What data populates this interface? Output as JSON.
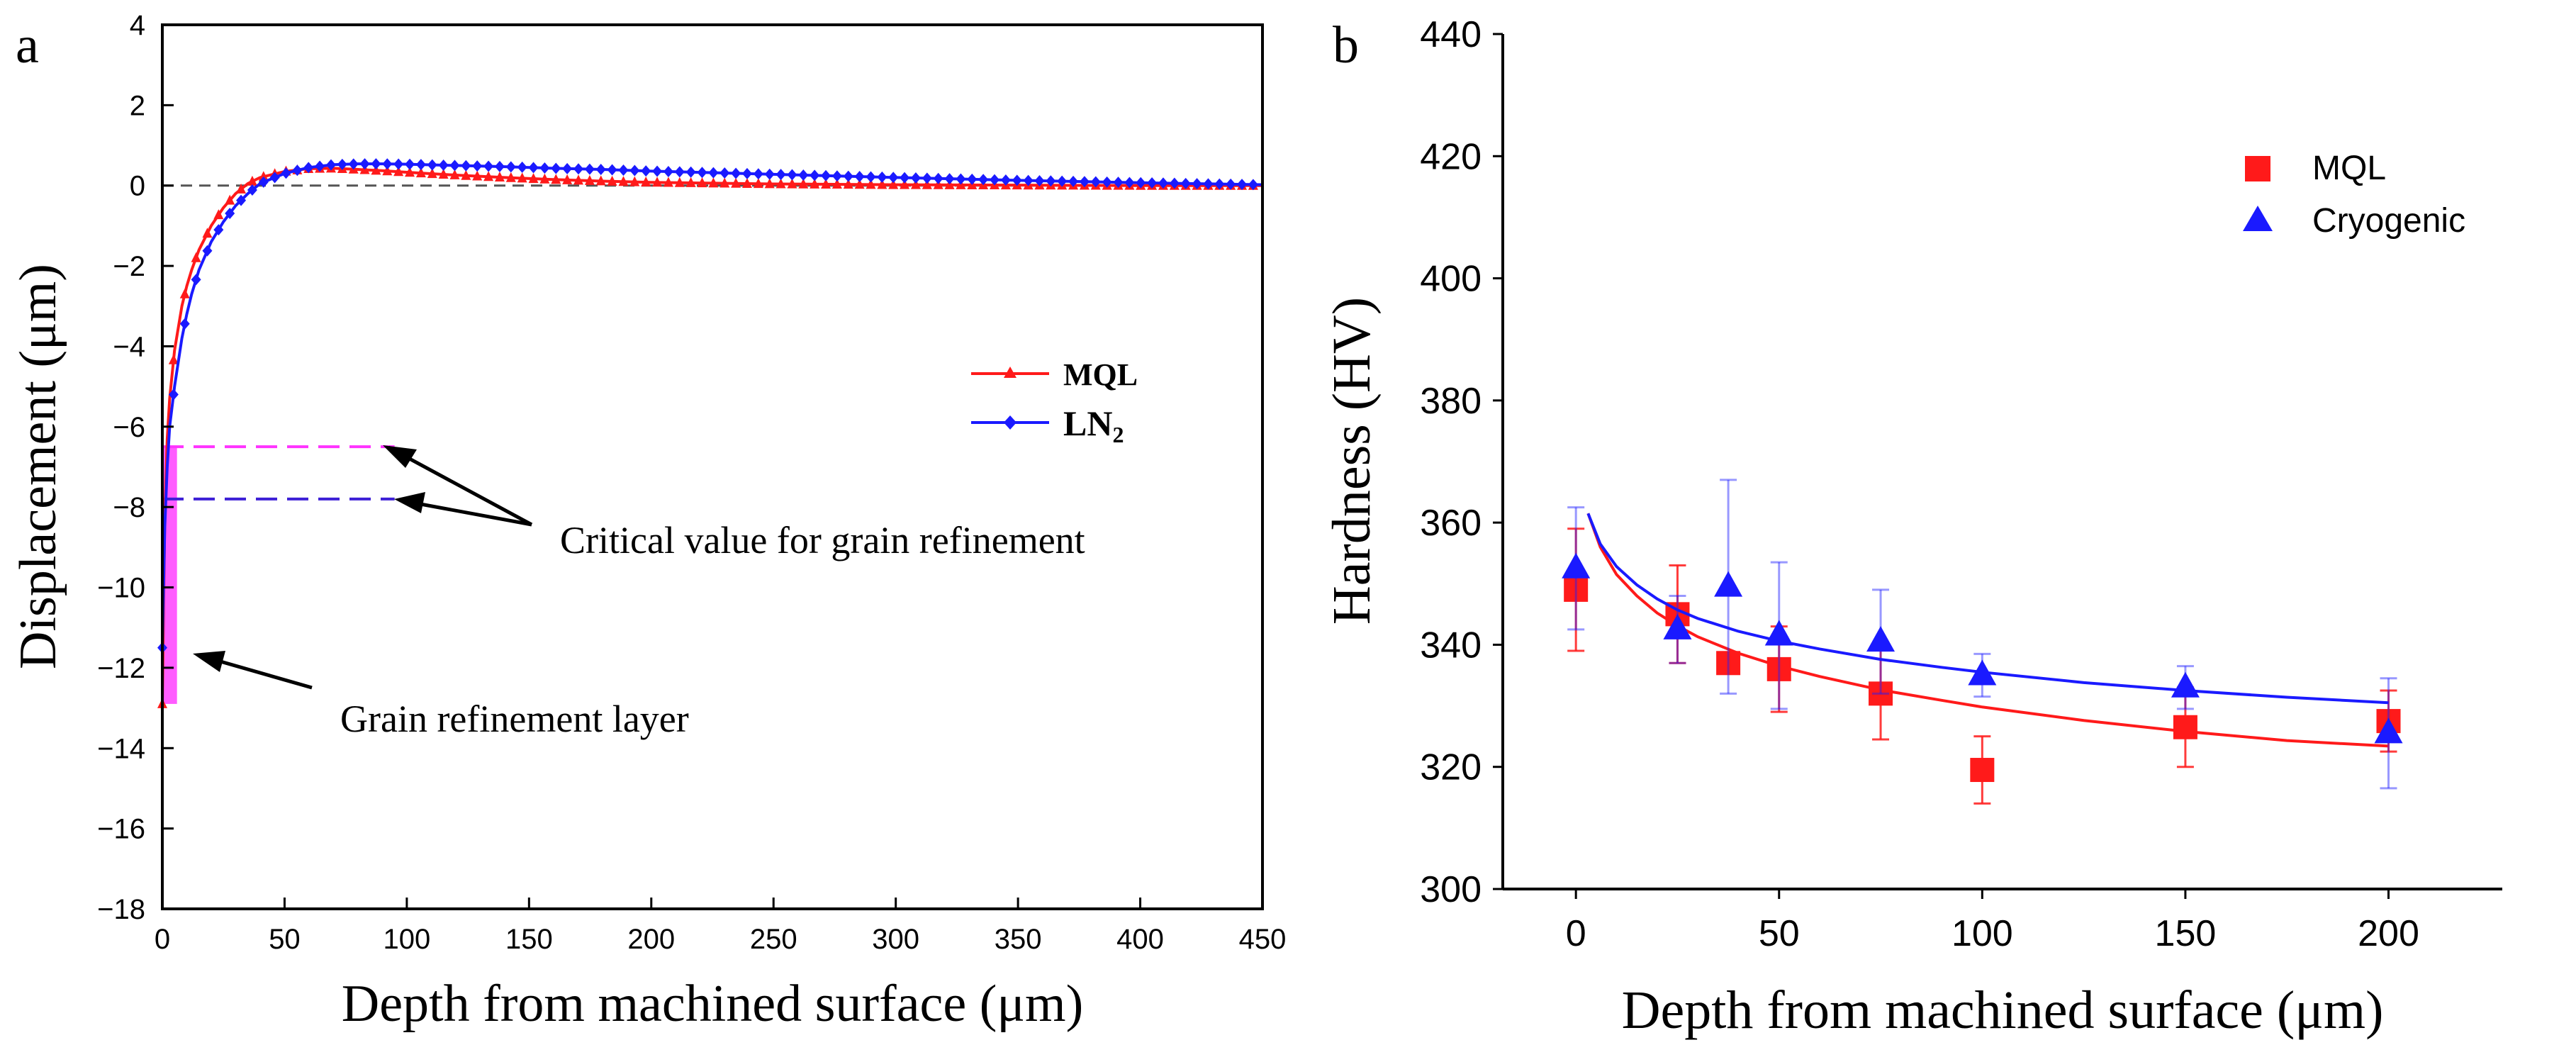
{
  "colors": {
    "mql": "#ff1a1a",
    "ln2": "#1a1aff",
    "magenta": "#ff33ff",
    "purple_dash": "#3d1fd6",
    "axis": "#000000",
    "zero_line": "#555555"
  },
  "chart_data": [
    {
      "panel_label": "a",
      "type": "line",
      "xlabel": "Depth from machined surface (μm)",
      "ylabel": "Displacement (μm)",
      "xlim": [
        0,
        450
      ],
      "ylim": [
        -18,
        4
      ],
      "xticks": [
        0,
        50,
        100,
        150,
        200,
        250,
        300,
        350,
        400,
        450
      ],
      "yticks": [
        4,
        2,
        0,
        -2,
        -4,
        -6,
        -8,
        -10,
        -12,
        -14,
        -16,
        -18
      ],
      "ytick_labels": [
        "4",
        "2",
        "0",
        "−2",
        "−4",
        "−6",
        "−8",
        "−10",
        "−12",
        "−14",
        "−16",
        "−18"
      ],
      "zero_line": 0,
      "legend": {
        "position": "middle-right",
        "mql": "MQL",
        "ln2_main": "LN",
        "ln2_sub": "2"
      },
      "series": [
        {
          "name": "MQL",
          "marker": "triangle",
          "x": [
            0,
            1,
            2,
            3,
            5,
            8,
            10,
            12,
            15,
            20,
            25,
            30,
            35,
            40,
            50,
            60,
            70,
            80,
            90,
            100,
            120,
            140,
            160,
            180,
            200,
            250,
            300,
            350,
            400,
            450
          ],
          "y": [
            -12.9,
            -8.2,
            -6.3,
            -5.3,
            -4.1,
            -3.0,
            -2.5,
            -2.1,
            -1.6,
            -1.0,
            -0.55,
            -0.2,
            0.05,
            0.2,
            0.35,
            0.42,
            0.43,
            0.4,
            0.37,
            0.33,
            0.26,
            0.2,
            0.15,
            0.11,
            0.08,
            0.04,
            0.02,
            0.01,
            0.0,
            0.0
          ]
        },
        {
          "name": "LN2",
          "marker": "diamond",
          "x": [
            0,
            1,
            2,
            3,
            5,
            8,
            10,
            12,
            15,
            20,
            25,
            30,
            35,
            40,
            50,
            60,
            70,
            80,
            90,
            100,
            120,
            140,
            160,
            180,
            200,
            250,
            300,
            350,
            400,
            450
          ],
          "y": [
            -11.5,
            -8.5,
            -7.0,
            -6.0,
            -5.0,
            -3.8,
            -3.2,
            -2.7,
            -2.1,
            -1.4,
            -0.9,
            -0.5,
            -0.2,
            0.05,
            0.3,
            0.45,
            0.52,
            0.54,
            0.54,
            0.53,
            0.5,
            0.47,
            0.43,
            0.4,
            0.36,
            0.28,
            0.2,
            0.13,
            0.07,
            0.02
          ]
        }
      ],
      "critical_lines": [
        {
          "name": "MQL critical",
          "y": -6.5,
          "x": [
            0,
            95
          ],
          "color_key": "magenta"
        },
        {
          "name": "LN2 critical",
          "y": -7.8,
          "x": [
            0,
            95
          ],
          "color_key": "purple_dash"
        }
      ],
      "refinement_layer": {
        "x": [
          0,
          6
        ],
        "y": [
          -12.9,
          -6.5
        ]
      },
      "annotations": [
        {
          "text": "Critical value for grain refinement"
        },
        {
          "text": "Grain refinement layer"
        }
      ]
    },
    {
      "panel_label": "b",
      "type": "scatter",
      "xlabel": "Depth from machined surface (μm)",
      "ylabel": "Hardness (HV)",
      "xlim": [
        -18,
        228
      ],
      "ylim": [
        300,
        440
      ],
      "xticks": [
        0,
        50,
        100,
        150,
        200
      ],
      "yticks": [
        300,
        320,
        340,
        360,
        380,
        400,
        420,
        440
      ],
      "legend": {
        "position": "top-right",
        "mql": "MQL",
        "cryo": "Cryogenic"
      },
      "series": [
        {
          "name": "MQL",
          "marker": "square",
          "x": [
            0,
            25,
            37.5,
            50,
            75,
            100,
            150,
            200
          ],
          "y": [
            349,
            345,
            337,
            336,
            332,
            319.5,
            326.5,
            327.5
          ],
          "err": [
            10,
            8,
            0.8,
            7,
            7.5,
            5.5,
            6.5,
            5
          ],
          "fit_x": [
            3,
            6,
            10,
            15,
            20,
            25,
            30,
            40,
            50,
            60,
            75,
            90,
            100,
            125,
            150,
            175,
            200
          ],
          "fit_y": [
            361.5,
            356,
            351.5,
            348,
            345.2,
            343.1,
            341.3,
            338.6,
            336.5,
            334.8,
            332.6,
            330.9,
            329.8,
            327.6,
            325.8,
            324.3,
            323.4
          ]
        },
        {
          "name": "Cryogenic",
          "marker": "triangle",
          "x": [
            0,
            25,
            37.5,
            50,
            75,
            100,
            150,
            200
          ],
          "y": [
            352.5,
            342.5,
            349.5,
            341.5,
            340.5,
            335,
            333,
            325.5
          ],
          "err": [
            10,
            5.5,
            17.5,
            12,
            8.5,
            3.5,
            3.5,
            9
          ],
          "fit_x": [
            3,
            6,
            10,
            15,
            20,
            25,
            30,
            40,
            50,
            60,
            75,
            90,
            100,
            125,
            150,
            175,
            200
          ],
          "fit_y": [
            361.5,
            356.5,
            352.8,
            349.8,
            347.5,
            345.7,
            344.3,
            342.2,
            340.6,
            339.3,
            337.6,
            336.3,
            335.5,
            333.8,
            332.5,
            331.4,
            330.5
          ]
        }
      ]
    }
  ]
}
